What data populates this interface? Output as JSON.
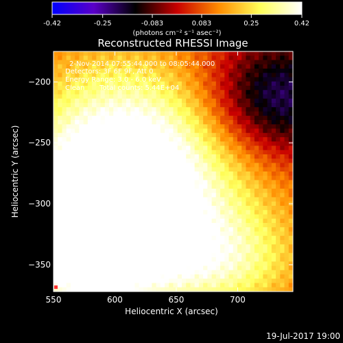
{
  "chart_data": {
    "type": "heatmap",
    "title": "Reconstructed RHESSI Image",
    "xlabel": "Heliocentric X (arcsec)",
    "ylabel": "Heliocentric Y (arcsec)",
    "xlim": [
      550,
      745
    ],
    "ylim": [
      -372,
      -175
    ],
    "xticks": [
      550,
      600,
      650,
      700
    ],
    "yticks": [
      -200,
      -250,
      -300,
      -350
    ],
    "annotations": {
      "time_range": "2-Nov-2014 07:55:44.000 to 08:05:44.000",
      "detectors": "Detectors: 3F 6F 9F, Att 0",
      "energy": "Energy Range: 3.0 - 6.0 keV",
      "method": "Clean",
      "counts": "Total counts: 5.44E+04",
      "peak": "Position of Peak = [547,-367]"
    },
    "colorbar": {
      "range": [
        -0.42,
        0.42
      ],
      "tick_labels": [
        "-0.42",
        "-0.25",
        "-0.083",
        "0.083",
        "0.25",
        "0.42"
      ],
      "label": "(photons cm⁻² s⁻¹ asec⁻²)",
      "colors": [
        "#0000ff",
        "#5a00c8",
        "#000000",
        "#c80000",
        "#ff8c00",
        "#ffff5a",
        "#ffffff"
      ]
    },
    "blobs": [
      {
        "x": 575,
        "y": -330,
        "amp": 0.42,
        "sx": 45,
        "sy": 45
      },
      {
        "x": 635,
        "y": -295,
        "amp": 0.3,
        "sx": 70,
        "sy": 60
      },
      {
        "x": 600,
        "y": -240,
        "amp": 0.22,
        "sx": 60,
        "sy": 55
      },
      {
        "x": 690,
        "y": -350,
        "amp": 0.18,
        "sx": 45,
        "sy": 30
      },
      {
        "x": 730,
        "y": -215,
        "amp": -0.3,
        "sx": 40,
        "sy": 35
      }
    ],
    "background": 0.05,
    "peak_position": [
      547,
      -367
    ]
  },
  "timestamp": "19-Jul-2017 19:00"
}
